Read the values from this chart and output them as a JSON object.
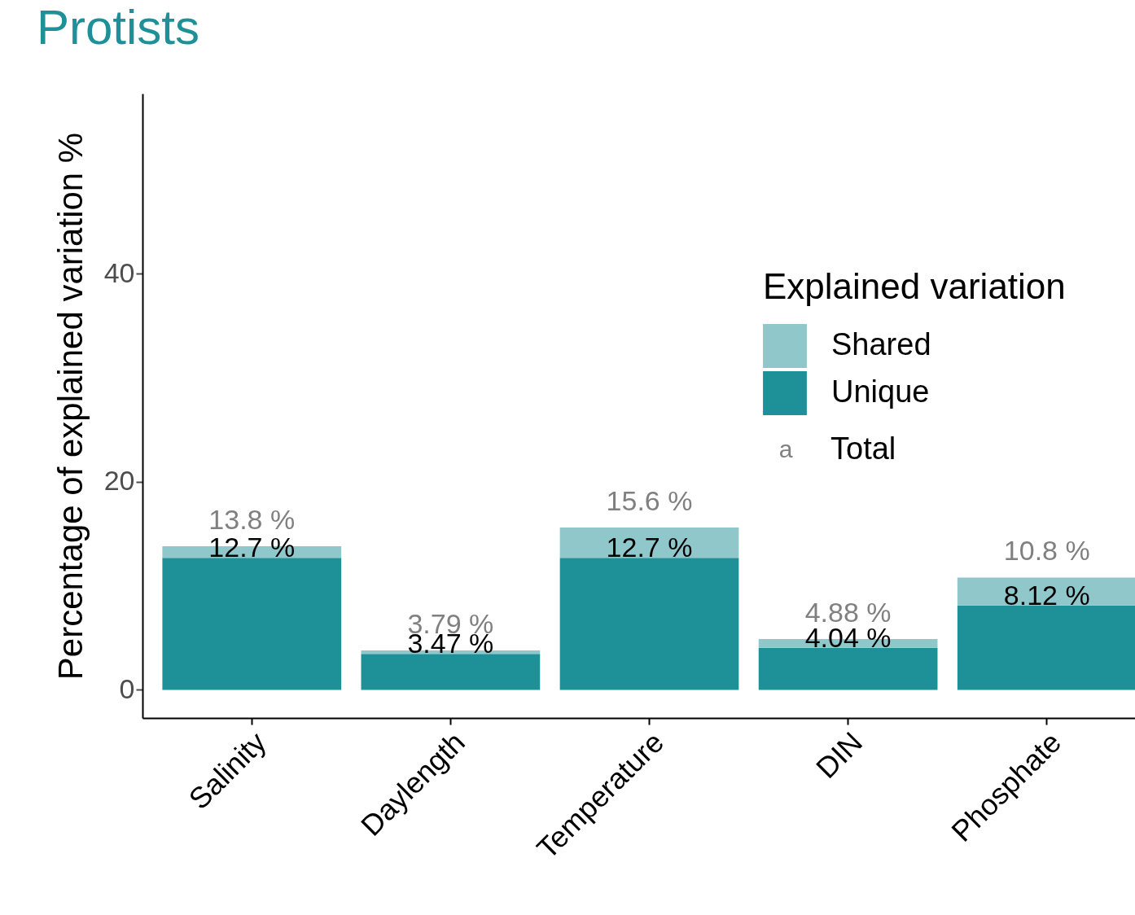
{
  "chart_data": {
    "type": "bar",
    "title": "Protists",
    "ylabel": "Percentage of explained variation %",
    "legend_title": "Explained variation",
    "categories": [
      "Salinity",
      "Daylength",
      "Temperature",
      "DIN",
      "Phosphate"
    ],
    "stacked": true,
    "series": [
      {
        "name": "Unique",
        "color": "#1e9098",
        "values": [
          12.7,
          3.47,
          12.7,
          4.04,
          8.12
        ],
        "value_labels": [
          "12.7 %",
          "3.47 %",
          "12.7 %",
          "4.04 %",
          "8.12 %"
        ]
      },
      {
        "name": "Shared",
        "color": "#8fc7cb",
        "values": [
          1.1,
          0.32,
          2.9,
          0.84,
          2.68
        ]
      }
    ],
    "totals": [
      "13.8 %",
      "3.79 %",
      "15.6 %",
      "4.88 %",
      "10.8 %"
    ],
    "annotations": [
      "a",
      "Total"
    ],
    "ylim": [
      -2.7,
      57.3
    ],
    "yticks": [
      0,
      20,
      40
    ],
    "grid": false,
    "legend": "right"
  }
}
